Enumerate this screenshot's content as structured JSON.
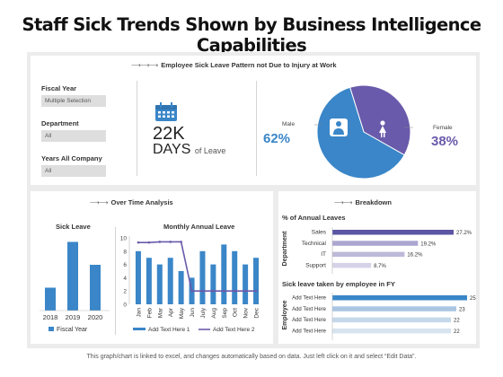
{
  "title": "Staff Sick Trends Shown by Business Intelligence Capabilities",
  "colors": {
    "blue": "#3a86c8",
    "purple": "#6a5aab",
    "light_bar": "#bcd3e6",
    "pale_bar": "#d6d6e8"
  },
  "top_panel": {
    "heading_arrow": "⟶⟶⟶",
    "heading": "Employee Sick Leave Pattern not Due to Injury at Work",
    "filters": [
      {
        "label": "Fiscal Year",
        "value": "Multiple Selection"
      },
      {
        "label": "Department",
        "value": "All"
      },
      {
        "label": "Years All Company",
        "value": "All"
      }
    ],
    "kpi": {
      "icon": "calendar-icon",
      "value": "22K",
      "unit": "DAYS",
      "suffix": "of Leave"
    },
    "gender": {
      "male_label": "Male",
      "male_pct": "62%",
      "male_icon": "male-user-icon",
      "female_label": "Female",
      "female_pct": "38%",
      "female_icon": "female-user-icon"
    }
  },
  "over_time": {
    "heading_arrow": "⟶⟶",
    "heading": "Over Time Analysis",
    "sick_leave_title": "Sick Leave",
    "sick_leave_legend": "Fiscal Year",
    "monthly_title": "Monthly Annual Leave",
    "monthly_legend_bar": "Add Text Here 1",
    "monthly_legend_line": "Add Text Here 2"
  },
  "breakdown": {
    "heading_arrow": "⟶⟶",
    "heading": "Breakdown",
    "annual_title": "% of Annual Leaves",
    "annual_axis": "Department",
    "fy_title": "Sick leave taken by employee in FY",
    "fy_axis": "Employee"
  },
  "chart_data": [
    {
      "type": "bar",
      "title": "Sick Leave",
      "categories": [
        "2018",
        "2019",
        "2020"
      ],
      "values": [
        3,
        9,
        6
      ],
      "legend": "Fiscal Year",
      "ylim": [
        0,
        10
      ]
    },
    {
      "type": "bar",
      "title": "Monthly Annual Leave",
      "categories": [
        "Jan",
        "Feb",
        "Mar",
        "Apr",
        "May",
        "Jun",
        "July",
        "Aug",
        "Sep",
        "Oct",
        "Nov",
        "Dec"
      ],
      "y_ticks": [
        0,
        2,
        4,
        6,
        8,
        10
      ],
      "ylim": [
        0,
        10
      ],
      "series": [
        {
          "name": "Add Text Here 1",
          "type": "bar",
          "values": [
            8,
            7,
            6,
            7,
            5,
            4,
            8,
            6,
            9,
            8,
            6,
            7
          ]
        },
        {
          "name": "Add Text Here 2",
          "type": "line",
          "values": [
            9.3,
            9.3,
            9.4,
            9.4,
            9.4,
            2,
            2,
            2,
            2,
            2,
            2,
            2
          ]
        }
      ]
    },
    {
      "type": "bar",
      "title": "% of Annual Leaves",
      "orientation": "horizontal",
      "ylabel": "Department",
      "categories": [
        "Sales",
        "Technical",
        "IT",
        "Support"
      ],
      "values": [
        27.2,
        19.2,
        16.2,
        8.7
      ],
      "labels": [
        "27.2%",
        "19.2%",
        "16.2%",
        "8.7%"
      ]
    },
    {
      "type": "bar",
      "title": "Sick leave taken by employee in FY",
      "orientation": "horizontal",
      "ylabel": "Employee",
      "categories": [
        "Add Text Here",
        "Add Text Here",
        "Add Text Here",
        "Add Text Here"
      ],
      "values": [
        25,
        23,
        22,
        22
      ]
    },
    {
      "type": "pie",
      "categories": [
        "Male",
        "Female"
      ],
      "values": [
        62,
        38
      ]
    }
  ],
  "footer": "This graph/chart is linked to excel, and changes automatically based on data. Just left click on it and select “Edit Data”."
}
